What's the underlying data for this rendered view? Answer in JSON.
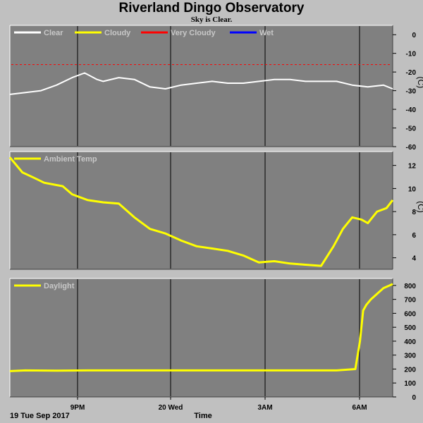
{
  "title": "Riverland Dingo Observatory",
  "subtitle": "Sky is Clear.",
  "chart_data": [
    {
      "type": "line",
      "name": "sky-temperature-panel",
      "unit": "(C)",
      "ylim": [
        -60,
        5
      ],
      "yticks": [
        0,
        -10,
        -20,
        -30,
        -40,
        -50,
        -60
      ],
      "xlim": [
        18.5,
        30.8
      ],
      "legend": [
        {
          "label": "Clear",
          "color": "#ffffff"
        },
        {
          "label": "Cloudy",
          "color": "#ffff00"
        },
        {
          "label": "Very Cloudy",
          "color": "#ff0000"
        },
        {
          "label": "Wet",
          "color": "#0000ff"
        }
      ],
      "thresholds": [
        {
          "value": -16,
          "color": "#ff0000",
          "style": "dashed"
        }
      ],
      "series": [
        {
          "name": "Clear",
          "color": "#ffffff",
          "x": [
            18.5,
            19.0,
            19.5,
            20.0,
            20.5,
            20.9,
            21.3,
            21.5,
            22.0,
            22.5,
            23.0,
            23.5,
            24.0,
            24.5,
            25.0,
            25.5,
            26.0,
            26.5,
            27.0,
            27.5,
            28.0,
            28.5,
            29.0,
            29.5,
            30.0,
            30.5,
            30.8
          ],
          "y": [
            -32,
            -31,
            -30,
            -27,
            -23,
            -20.5,
            -24,
            -25,
            -23,
            -24,
            -28,
            -29,
            -27,
            -26,
            -25,
            -26,
            -26,
            -25,
            -24,
            -24,
            -25,
            -25,
            -25,
            -27,
            -28,
            -27,
            -29
          ]
        }
      ]
    },
    {
      "type": "line",
      "name": "ambient-temp-panel",
      "unit": "(C)",
      "ylim": [
        3,
        13.2
      ],
      "yticks": [
        12,
        10,
        8,
        6,
        4
      ],
      "xlim": [
        18.5,
        30.8
      ],
      "legend": [
        {
          "label": "Ambient Temp",
          "color": "#ffff00"
        }
      ],
      "series": [
        {
          "name": "Ambient Temp",
          "color": "#ffff00",
          "x": [
            18.5,
            18.9,
            19.3,
            19.6,
            20.0,
            20.2,
            20.5,
            21.0,
            21.5,
            22.0,
            22.5,
            23.0,
            23.5,
            24.0,
            24.5,
            25.0,
            25.5,
            26.0,
            26.5,
            27.0,
            27.5,
            28.0,
            28.5,
            28.9,
            29.2,
            29.5,
            29.8,
            30.0,
            30.3,
            30.6,
            30.8
          ],
          "y": [
            12.7,
            11.4,
            10.9,
            10.5,
            10.3,
            10.2,
            9.5,
            9.0,
            8.8,
            8.7,
            7.5,
            6.5,
            6.1,
            5.5,
            5.0,
            4.8,
            4.6,
            4.2,
            3.6,
            3.7,
            3.5,
            3.4,
            3.3,
            5.0,
            6.5,
            7.5,
            7.3,
            7.0,
            8.0,
            8.3,
            9.0
          ]
        }
      ]
    },
    {
      "type": "line",
      "name": "daylight-panel",
      "unit": "",
      "ylim": [
        0,
        850
      ],
      "yticks": [
        800,
        700,
        600,
        500,
        400,
        300,
        200,
        100,
        0
      ],
      "xlim": [
        18.5,
        30.8
      ],
      "legend": [
        {
          "label": "Daylight",
          "color": "#ffff00"
        }
      ],
      "series": [
        {
          "name": "Daylight",
          "color": "#ffff00",
          "x": [
            18.5,
            19.0,
            20.0,
            21.0,
            22.0,
            23.0,
            24.0,
            25.0,
            26.0,
            27.0,
            28.0,
            29.0,
            29.6,
            29.75,
            29.85,
            29.95,
            30.1,
            30.3,
            30.5,
            30.7,
            30.8
          ],
          "y": [
            185,
            190,
            188,
            190,
            190,
            190,
            190,
            190,
            190,
            190,
            190,
            190,
            200,
            400,
            620,
            660,
            700,
            740,
            780,
            800,
            810
          ]
        }
      ]
    }
  ],
  "x_axis": {
    "label": "Time",
    "start_label": "19 Tue Sep 2017",
    "ticks": [
      {
        "x": 21,
        "label": "9PM"
      },
      {
        "x": 24,
        "label": "20 Wed"
      },
      {
        "x": 27,
        "label": "3AM"
      },
      {
        "x": 30,
        "label": "6AM"
      }
    ]
  },
  "colors": {
    "panel_background": "#808080",
    "page_background": "#c0c0c0",
    "grid": "#000000"
  }
}
